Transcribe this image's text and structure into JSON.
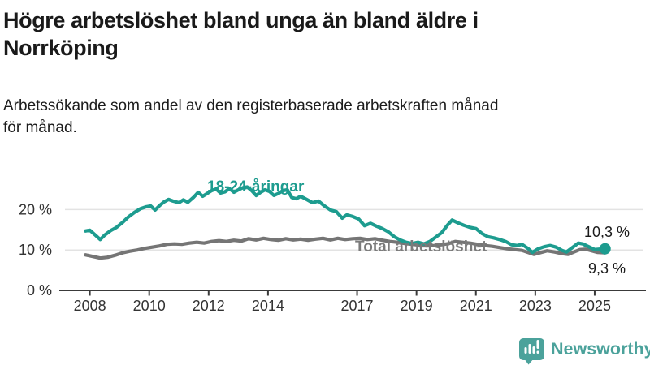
{
  "chart_data": {
    "type": "line",
    "title": "Högre arbetslöshet bland unga än bland äldre i Norrköping",
    "title_lines": [
      "Högre arbetslöshet bland unga än bland äldre i",
      "Norrköping"
    ],
    "subtitle": "Arbetssökande som andel av den registerbaserade arbetskraften månad för månad.",
    "subtitle_lines": [
      "Arbetssökande som andel av den registerbaserade arbetskraften månad",
      "för månad."
    ],
    "grid": "horizontal",
    "x_axis": {
      "tick_years": [
        2008,
        2010,
        2012,
        2014,
        2017,
        2019,
        2021,
        2023,
        2025
      ],
      "tick_labels": [
        "2008",
        "2010",
        "2012",
        "2014",
        "2017",
        "2019",
        "2021",
        "2023",
        "2025"
      ],
      "range": [
        2007.6,
        2025.8
      ]
    },
    "y_axis": {
      "tick_values": [
        0,
        10,
        20
      ],
      "tick_labels": [
        "0 %",
        "10 %",
        "20 %"
      ],
      "unit": "%",
      "range": [
        0,
        27
      ]
    },
    "series": [
      {
        "name": "Total arbetslöshet",
        "color": "#757575",
        "end_label": "9,3 %",
        "end_value": 9.3,
        "points": [
          [
            2007.85,
            8.8
          ],
          [
            2008.1,
            8.4
          ],
          [
            2008.35,
            8.0
          ],
          [
            2008.6,
            8.2
          ],
          [
            2008.85,
            8.7
          ],
          [
            2009.1,
            9.3
          ],
          [
            2009.35,
            9.7
          ],
          [
            2009.6,
            10.0
          ],
          [
            2009.85,
            10.4
          ],
          [
            2010.1,
            10.7
          ],
          [
            2010.35,
            11.0
          ],
          [
            2010.6,
            11.4
          ],
          [
            2010.85,
            11.5
          ],
          [
            2011.1,
            11.4
          ],
          [
            2011.35,
            11.7
          ],
          [
            2011.6,
            11.9
          ],
          [
            2011.85,
            11.7
          ],
          [
            2012.1,
            12.1
          ],
          [
            2012.35,
            12.3
          ],
          [
            2012.6,
            12.1
          ],
          [
            2012.85,
            12.4
          ],
          [
            2013.1,
            12.2
          ],
          [
            2013.35,
            12.8
          ],
          [
            2013.6,
            12.5
          ],
          [
            2013.85,
            12.9
          ],
          [
            2014.1,
            12.6
          ],
          [
            2014.35,
            12.4
          ],
          [
            2014.6,
            12.8
          ],
          [
            2014.85,
            12.5
          ],
          [
            2015.1,
            12.7
          ],
          [
            2015.35,
            12.4
          ],
          [
            2015.6,
            12.7
          ],
          [
            2015.85,
            12.9
          ],
          [
            2016.1,
            12.5
          ],
          [
            2016.35,
            12.9
          ],
          [
            2016.6,
            12.6
          ],
          [
            2016.85,
            12.8
          ],
          [
            2017.1,
            12.9
          ],
          [
            2017.35,
            12.6
          ],
          [
            2017.6,
            12.8
          ],
          [
            2017.85,
            12.4
          ],
          [
            2018.1,
            12.1
          ],
          [
            2018.35,
            11.9
          ],
          [
            2018.6,
            11.6
          ],
          [
            2018.85,
            11.4
          ],
          [
            2019.1,
            11.2
          ],
          [
            2019.35,
            11.0
          ],
          [
            2019.6,
            11.1
          ],
          [
            2019.85,
            11.3
          ],
          [
            2020.1,
            11.6
          ],
          [
            2020.3,
            12.1
          ],
          [
            2020.55,
            11.9
          ],
          [
            2020.8,
            11.7
          ],
          [
            2021.05,
            11.4
          ],
          [
            2021.3,
            11.1
          ],
          [
            2021.55,
            10.9
          ],
          [
            2021.8,
            10.6
          ],
          [
            2022.05,
            10.3
          ],
          [
            2022.3,
            10.1
          ],
          [
            2022.55,
            9.9
          ],
          [
            2022.75,
            9.4
          ],
          [
            2022.95,
            8.9
          ],
          [
            2023.15,
            9.3
          ],
          [
            2023.4,
            9.8
          ],
          [
            2023.65,
            9.5
          ],
          [
            2023.9,
            9.1
          ],
          [
            2024.1,
            8.9
          ],
          [
            2024.3,
            9.5
          ],
          [
            2024.5,
            10.1
          ],
          [
            2024.7,
            10.2
          ],
          [
            2024.9,
            9.8
          ],
          [
            2025.1,
            9.4
          ],
          [
            2025.35,
            9.3
          ]
        ]
      },
      {
        "name": "18-24-åringar",
        "color": "#1d9c8f",
        "end_label": "10,3 %",
        "end_value": 10.3,
        "points": [
          [
            2007.85,
            14.7
          ],
          [
            2008.0,
            14.9
          ],
          [
            2008.2,
            13.6
          ],
          [
            2008.35,
            12.6
          ],
          [
            2008.5,
            13.7
          ],
          [
            2008.7,
            14.8
          ],
          [
            2008.9,
            15.6
          ],
          [
            2009.1,
            16.8
          ],
          [
            2009.3,
            18.2
          ],
          [
            2009.5,
            19.3
          ],
          [
            2009.7,
            20.2
          ],
          [
            2009.9,
            20.7
          ],
          [
            2010.05,
            20.9
          ],
          [
            2010.2,
            19.9
          ],
          [
            2010.35,
            21.0
          ],
          [
            2010.5,
            21.9
          ],
          [
            2010.65,
            22.5
          ],
          [
            2010.8,
            22.1
          ],
          [
            2011.0,
            21.7
          ],
          [
            2011.15,
            22.4
          ],
          [
            2011.3,
            21.8
          ],
          [
            2011.5,
            23.1
          ],
          [
            2011.65,
            24.3
          ],
          [
            2011.8,
            23.3
          ],
          [
            2011.95,
            24.0
          ],
          [
            2012.1,
            24.7
          ],
          [
            2012.25,
            25.1
          ],
          [
            2012.4,
            24.1
          ],
          [
            2012.55,
            24.4
          ],
          [
            2012.7,
            25.2
          ],
          [
            2012.85,
            24.3
          ],
          [
            2013.0,
            24.9
          ],
          [
            2013.15,
            25.4
          ],
          [
            2013.3,
            25.6
          ],
          [
            2013.45,
            24.7
          ],
          [
            2013.6,
            23.5
          ],
          [
            2013.75,
            24.3
          ],
          [
            2013.9,
            24.9
          ],
          [
            2014.05,
            24.5
          ],
          [
            2014.2,
            23.5
          ],
          [
            2014.35,
            24.0
          ],
          [
            2014.5,
            24.7
          ],
          [
            2014.65,
            24.9
          ],
          [
            2014.8,
            23.0
          ],
          [
            2014.95,
            22.7
          ],
          [
            2015.1,
            23.3
          ],
          [
            2015.3,
            22.5
          ],
          [
            2015.5,
            21.7
          ],
          [
            2015.7,
            22.1
          ],
          [
            2015.9,
            20.9
          ],
          [
            2016.1,
            19.9
          ],
          [
            2016.3,
            19.5
          ],
          [
            2016.5,
            17.9
          ],
          [
            2016.65,
            18.7
          ],
          [
            2016.85,
            18.3
          ],
          [
            2017.05,
            17.7
          ],
          [
            2017.25,
            16.0
          ],
          [
            2017.45,
            16.6
          ],
          [
            2017.65,
            15.9
          ],
          [
            2017.85,
            15.3
          ],
          [
            2018.05,
            14.5
          ],
          [
            2018.25,
            13.3
          ],
          [
            2018.45,
            12.5
          ],
          [
            2018.65,
            11.9
          ],
          [
            2018.85,
            11.6
          ],
          [
            2019.05,
            11.9
          ],
          [
            2019.25,
            11.5
          ],
          [
            2019.45,
            12.1
          ],
          [
            2019.65,
            13.2
          ],
          [
            2019.85,
            14.3
          ],
          [
            2020.05,
            16.2
          ],
          [
            2020.2,
            17.4
          ],
          [
            2020.4,
            16.7
          ],
          [
            2020.6,
            16.1
          ],
          [
            2020.8,
            15.6
          ],
          [
            2021.0,
            15.3
          ],
          [
            2021.2,
            14.1
          ],
          [
            2021.4,
            13.3
          ],
          [
            2021.6,
            13.0
          ],
          [
            2021.8,
            12.6
          ],
          [
            2022.0,
            12.1
          ],
          [
            2022.2,
            11.3
          ],
          [
            2022.4,
            11.1
          ],
          [
            2022.55,
            11.4
          ],
          [
            2022.75,
            10.4
          ],
          [
            2022.9,
            9.4
          ],
          [
            2023.1,
            10.3
          ],
          [
            2023.3,
            10.8
          ],
          [
            2023.5,
            11.1
          ],
          [
            2023.7,
            10.7
          ],
          [
            2023.9,
            9.9
          ],
          [
            2024.05,
            9.5
          ],
          [
            2024.25,
            10.6
          ],
          [
            2024.45,
            11.7
          ],
          [
            2024.6,
            11.5
          ],
          [
            2024.8,
            10.8
          ],
          [
            2025.0,
            10.1
          ],
          [
            2025.15,
            10.2
          ],
          [
            2025.35,
            10.3
          ]
        ]
      }
    ]
  },
  "footer": {
    "brand": "Newsworthy",
    "logo_icon": "speech-bubble-bar-chart-exclamation"
  },
  "colors": {
    "youth_teal": "#1d9c8f",
    "total_gray": "#757575",
    "logo_teal": "#4ba29b",
    "gridline": "#e3e3e3",
    "axis": "#3a3a3a"
  }
}
